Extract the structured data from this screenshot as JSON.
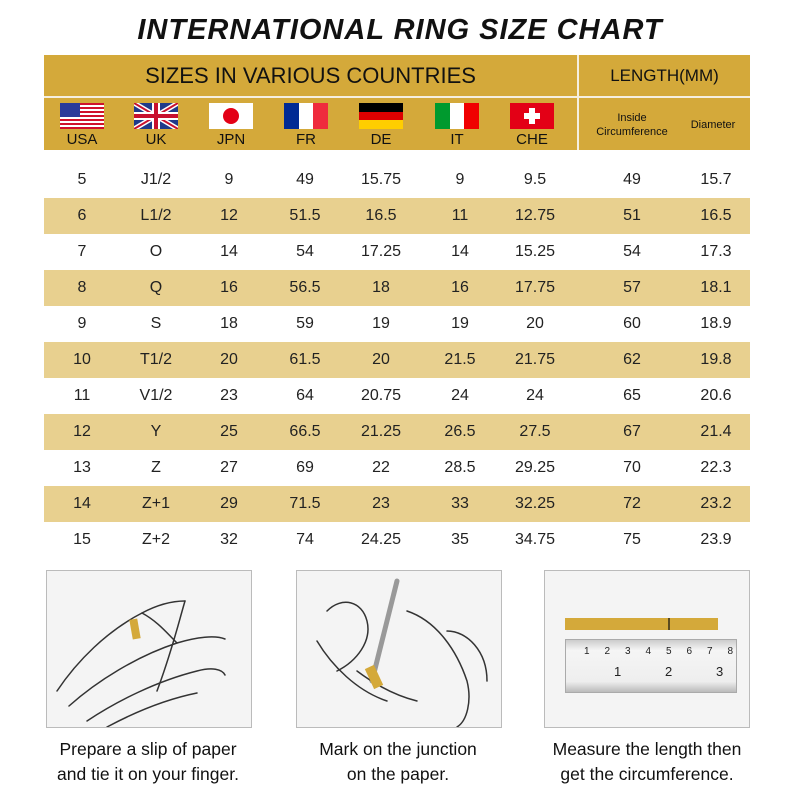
{
  "title": "INTERNATIONAL RING SIZE CHART",
  "header": {
    "sizes_label": "SIZES IN VARIOUS COUNTRIES",
    "length_label": "LENGTH(MM)",
    "countries": [
      "USA",
      "UK",
      "JPN",
      "FR",
      "DE",
      "IT",
      "CHE"
    ],
    "inside_label_1": "Inside",
    "inside_label_2": "Circumference",
    "diameter_label": "Diameter"
  },
  "colors": {
    "header": "#d4a93a",
    "alt_row": "#e8d08f"
  },
  "rows": [
    [
      "5",
      "J1/2",
      "9",
      "49",
      "15.75",
      "9",
      "9.5",
      "49",
      "15.7"
    ],
    [
      "6",
      "L1/2",
      "12",
      "51.5",
      "16.5",
      "11",
      "12.75",
      "51",
      "16.5"
    ],
    [
      "7",
      "O",
      "14",
      "54",
      "17.25",
      "14",
      "15.25",
      "54",
      "17.3"
    ],
    [
      "8",
      "Q",
      "16",
      "56.5",
      "18",
      "16",
      "17.75",
      "57",
      "18.1"
    ],
    [
      "9",
      "S",
      "18",
      "59",
      "19",
      "19",
      "20",
      "60",
      "18.9"
    ],
    [
      "10",
      "T1/2",
      "20",
      "61.5",
      "20",
      "21.5",
      "21.75",
      "62",
      "19.8"
    ],
    [
      "11",
      "V1/2",
      "23",
      "64",
      "20.75",
      "24",
      "24",
      "65",
      "20.6"
    ],
    [
      "12",
      "Y",
      "25",
      "66.5",
      "21.25",
      "26.5",
      "27.5",
      "67",
      "21.4"
    ],
    [
      "13",
      "Z",
      "27",
      "69",
      "22",
      "28.5",
      "29.25",
      "70",
      "22.3"
    ],
    [
      "14",
      "Z+1",
      "29",
      "71.5",
      "23",
      "33",
      "32.25",
      "72",
      "23.2"
    ],
    [
      "15",
      "Z+2",
      "32",
      "74",
      "24.25",
      "35",
      "34.75",
      "75",
      "23.9"
    ]
  ],
  "steps": [
    {
      "line1": "Prepare a slip of paper",
      "line2": "and tie it on your finger."
    },
    {
      "line1": "Mark on the junction",
      "line2": "on the paper."
    },
    {
      "line1": "Measure the length then",
      "line2": "get the circumference."
    }
  ],
  "ruler": {
    "top_marks": [
      "1",
      "2",
      "3",
      "4",
      "5",
      "6",
      "7",
      "8"
    ],
    "bottom_marks": [
      "1",
      "2",
      "3"
    ]
  }
}
